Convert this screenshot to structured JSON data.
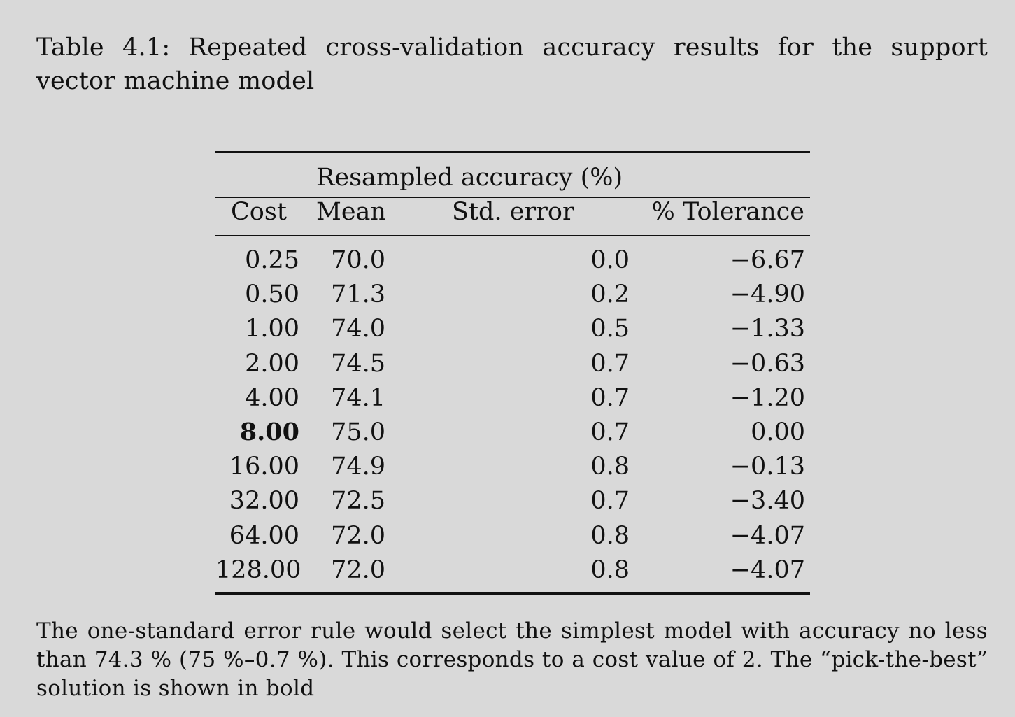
{
  "caption": {
    "text": "Table 4.1: Repeated cross-validation accuracy results for the support vector machine model"
  },
  "table": {
    "group_header": "Resampled accuracy (%)",
    "columns": [
      "Cost",
      "Mean",
      "Std. error",
      "% Tolerance"
    ],
    "rows": [
      {
        "cost": "0.25",
        "mean": "70.0",
        "std_error": "0.0",
        "tolerance": "−6.67",
        "bold": false
      },
      {
        "cost": "0.50",
        "mean": "71.3",
        "std_error": "0.2",
        "tolerance": "−4.90",
        "bold": false
      },
      {
        "cost": "1.00",
        "mean": "74.0",
        "std_error": "0.5",
        "tolerance": "−1.33",
        "bold": false
      },
      {
        "cost": "2.00",
        "mean": "74.5",
        "std_error": "0.7",
        "tolerance": "−0.63",
        "bold": false
      },
      {
        "cost": "4.00",
        "mean": "74.1",
        "std_error": "0.7",
        "tolerance": "−1.20",
        "bold": false
      },
      {
        "cost": "8.00",
        "mean": "75.0",
        "std_error": "0.7",
        "tolerance": "0.00",
        "bold": true
      },
      {
        "cost": "16.00",
        "mean": "74.9",
        "std_error": "0.8",
        "tolerance": "−0.13",
        "bold": false
      },
      {
        "cost": "32.00",
        "mean": "72.5",
        "std_error": "0.7",
        "tolerance": "−3.40",
        "bold": false
      },
      {
        "cost": "64.00",
        "mean": "72.0",
        "std_error": "0.8",
        "tolerance": "−4.07",
        "bold": false
      },
      {
        "cost": "128.00",
        "mean": "72.0",
        "std_error": "0.8",
        "tolerance": "−4.07",
        "bold": false
      }
    ]
  },
  "note": {
    "text": "The one-standard error rule would select the simplest model with accuracy no less than 74.3 % (75 %–0.7 %). This corresponds to a cost value of 2. The “pick-the-best” solution is shown in bold"
  }
}
